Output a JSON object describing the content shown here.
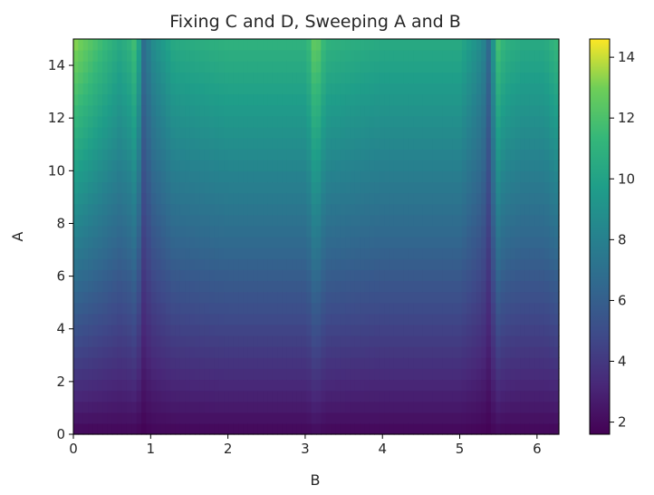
{
  "chart_data": {
    "type": "heatmap",
    "title": "Fixing C and D, Sweeping A and B",
    "xlabel": "B",
    "ylabel": "A",
    "xlim": [
      0,
      6.2832
    ],
    "ylim": [
      0,
      15
    ],
    "x_ticks": [
      "0",
      "1",
      "2",
      "3",
      "4",
      "5",
      "6"
    ],
    "y_ticks": [
      "0",
      "2",
      "4",
      "6",
      "8",
      "10",
      "12",
      "14"
    ],
    "colormap": "viridis",
    "color_range": [
      1.6,
      14.6
    ],
    "colorbar_ticks": [
      "2",
      "4",
      "6",
      "8",
      "10",
      "12",
      "14"
    ],
    "value_description": "value rises roughly linearly with A (about 1.6 at A=0 to about 10.5 at A=15 away from ridges); sharp bright ridge at B≈3.14 reaching about 14.6; bright bands near B≈0.8 and B≈5.5 with dark troughs at B≈0.9 and B≈5.4 in the lower A range",
    "x_profile": {
      "B": [
        0,
        0.6,
        0.75,
        0.8,
        0.85,
        0.92,
        1.0,
        1.3,
        2.0,
        3.0,
        3.1,
        3.1416,
        3.18,
        3.3,
        4.0,
        5.0,
        5.3,
        5.38,
        5.45,
        5.5,
        5.58,
        5.8,
        6.1,
        6.2832
      ],
      "top_value_at_A15": [
        13.5,
        10.5,
        11.2,
        12.0,
        10.0,
        6.5,
        8.5,
        10.5,
        11.0,
        11.0,
        12.0,
        14.6,
        12.0,
        11.0,
        10.5,
        10.5,
        8.5,
        6.5,
        10.0,
        12.0,
        11.0,
        10.5,
        10.5,
        11.5
      ],
      "bottom_value_at_A0": [
        1.8,
        1.8,
        1.8,
        1.8,
        1.7,
        1.6,
        1.8,
        1.8,
        1.8,
        1.8,
        1.9,
        2.2,
        1.9,
        1.8,
        1.8,
        1.8,
        1.7,
        1.6,
        1.8,
        1.9,
        1.8,
        1.8,
        1.8,
        1.8
      ]
    }
  }
}
